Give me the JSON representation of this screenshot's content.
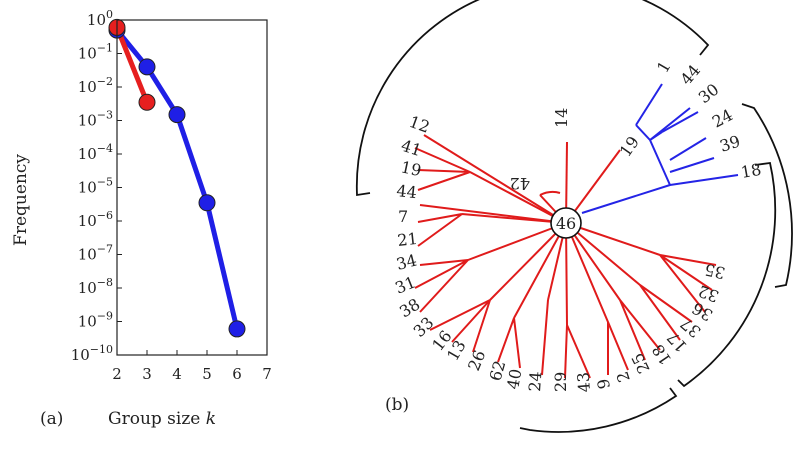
{
  "panel_a": {
    "caption": "(a)",
    "chart_data": {
      "type": "line",
      "xlabel": "Group size k",
      "ylabel": "Frequency",
      "xlim": [
        2,
        7
      ],
      "ylim": [
        1e-10,
        1
      ],
      "yscale": "log",
      "x_ticks": [
        "2",
        "3",
        "4",
        "5",
        "6",
        "7"
      ],
      "y_ticks": [
        {
          "exp": 0,
          "label_base": "10",
          "label_exp": "0"
        },
        {
          "exp": -1,
          "label_base": "10",
          "label_exp": "−1"
        },
        {
          "exp": -2,
          "label_base": "10",
          "label_exp": "−2"
        },
        {
          "exp": -3,
          "label_base": "10",
          "label_exp": "−3"
        },
        {
          "exp": -4,
          "label_base": "10",
          "label_exp": "−4"
        },
        {
          "exp": -5,
          "label_base": "10",
          "label_exp": "−5"
        },
        {
          "exp": -6,
          "label_base": "10",
          "label_exp": "−6"
        },
        {
          "exp": -7,
          "label_base": "10",
          "label_exp": "−7"
        },
        {
          "exp": -8,
          "label_base": "10",
          "label_exp": "−8"
        },
        {
          "exp": -9,
          "label_base": "10",
          "label_exp": "−9"
        },
        {
          "exp": -10,
          "label_base": "10",
          "label_exp": "−10"
        }
      ],
      "series": [
        {
          "color": "#1f1fe6",
          "x": [
            2,
            3,
            4,
            5,
            6
          ],
          "y": [
            0.5,
            0.04,
            0.0015,
            3.5e-06,
            6e-10
          ]
        },
        {
          "color": "#e61f1f",
          "x": [
            2,
            3
          ],
          "y": [
            0.6,
            0.0035
          ]
        }
      ]
    }
  },
  "panel_b": {
    "caption": "(b)",
    "root_label": "46",
    "colors": {
      "red": "#e01b1b",
      "blue": "#2424e6",
      "bracket": "#111111"
    },
    "leaf_labels_red": [
      "14",
      "19",
      "42",
      "12",
      "41",
      "19",
      "44",
      "7",
      "21",
      "34",
      "31",
      "38",
      "33",
      "16",
      "13",
      "26",
      "62",
      "40",
      "24",
      "29",
      "43",
      "9",
      "2",
      "25",
      "18",
      "17",
      "37",
      "36",
      "32",
      "35"
    ],
    "leaf_labels_blue": [
      "1",
      "44",
      "30",
      "24",
      "39",
      "18"
    ]
  }
}
